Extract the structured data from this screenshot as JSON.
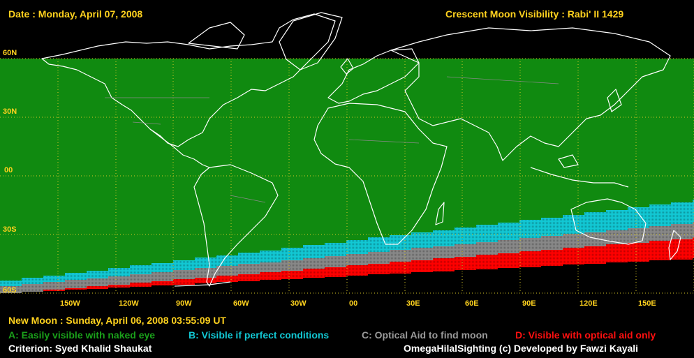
{
  "header": {
    "date": "Date : Monday, April 07, 2008",
    "title": "Crescent Moon Visibility : Rabi' II  1429"
  },
  "map": {
    "lat_labels": [
      "60N",
      "30N",
      "00",
      "30S",
      "60S"
    ],
    "lon_labels": [
      "150W",
      "120W",
      "90W",
      "60W",
      "30W",
      "00",
      "30E",
      "60E",
      "90E",
      "120E",
      "150E"
    ],
    "zone_colors": {
      "A": "#108a10",
      "B": "#12c8d4",
      "C": "#888888",
      "D": "#ff0000",
      "none": "#000000"
    }
  },
  "footer": {
    "new_moon": "New Moon : Sunday, April 06, 2008  03:55:09  UT",
    "legend": [
      {
        "key": "A",
        "label": "A: Easily visible with naked eye",
        "color": "#1aa01a"
      },
      {
        "key": "B",
        "label": "B: Visible if perfect conditions",
        "color": "#12c8d4"
      },
      {
        "key": "C",
        "label": "C: Optical Aid to find moon",
        "color": "#9a9a9a"
      },
      {
        "key": "D",
        "label": "D: Visible with optical aid only",
        "color": "#ff1010"
      }
    ],
    "criterion": "Criterion: Syed Khalid Shaukat",
    "credit": "OmegaHilalSighting  (c)  Developed by Fawzi Kayali"
  }
}
